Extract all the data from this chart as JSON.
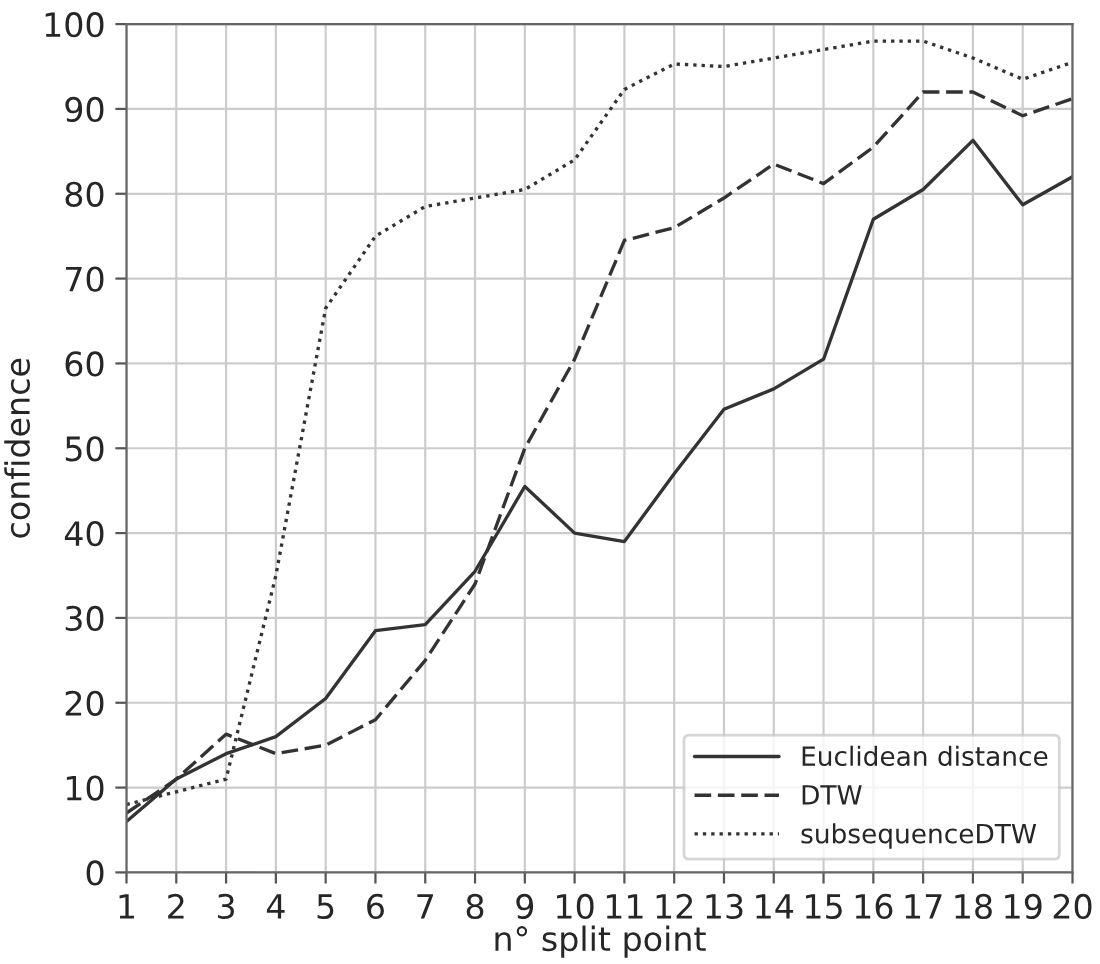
{
  "chart_data": {
    "type": "line",
    "xlabel": "n° split point",
    "ylabel": "confidence",
    "x": [
      1,
      2,
      3,
      4,
      5,
      6,
      7,
      8,
      9,
      10,
      11,
      12,
      13,
      14,
      15,
      16,
      17,
      18,
      19,
      20
    ],
    "xlim": [
      1,
      20
    ],
    "xticks": [
      1,
      2,
      3,
      4,
      5,
      6,
      7,
      8,
      9,
      10,
      11,
      12,
      13,
      14,
      15,
      16,
      17,
      18,
      19,
      20
    ],
    "ylim": [
      0,
      100
    ],
    "yticks": [
      0,
      10,
      20,
      30,
      40,
      50,
      60,
      70,
      80,
      90,
      100
    ],
    "grid": true,
    "legend": "bottom right",
    "marker": "none",
    "series": [
      {
        "name": "Euclidean distance",
        "color": "#333333",
        "line_style": "solid",
        "values": [
          6,
          11,
          14,
          16,
          20.5,
          28.5,
          29.2,
          35.5,
          45.5,
          40,
          39,
          47,
          54.6,
          57,
          60.5,
          77,
          80.5,
          86.3,
          78.7,
          82
        ]
      },
      {
        "name": "DTW",
        "color": "#333333",
        "line_style": "dashed",
        "values": [
          7,
          11,
          16.3,
          14,
          15,
          18,
          25,
          34,
          50,
          60.5,
          74.5,
          76,
          79.5,
          83.5,
          81.2,
          85.5,
          92,
          92,
          89.2,
          91.2
        ]
      },
      {
        "name": "subsequenceDTW",
        "color": "#333333",
        "line_style": "dotted",
        "values": [
          8,
          9.5,
          11,
          35,
          66.5,
          75,
          78.5,
          79.5,
          80.5,
          84,
          92.3,
          95.3,
          95,
          96,
          97,
          98,
          98,
          96,
          93.5,
          95.5
        ]
      }
    ]
  }
}
